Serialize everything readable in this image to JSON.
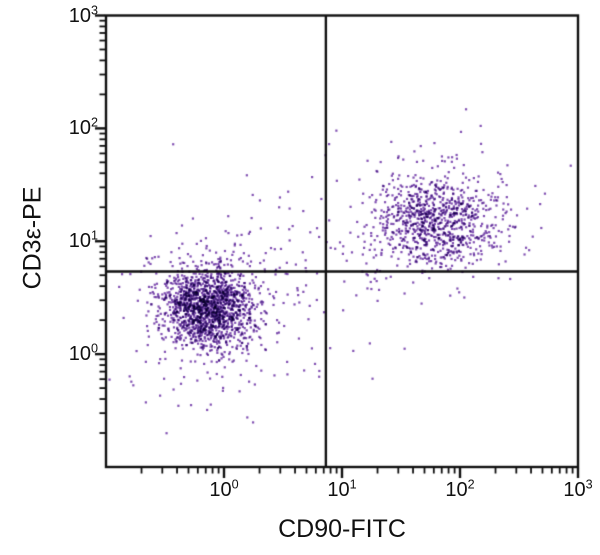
{
  "chart_data": {
    "type": "scatter",
    "subtype": "flow-cytometry-dot-plot",
    "title": "",
    "xlabel": "CD90-FITC",
    "ylabel": "CD3ε-PE",
    "x_scale": "log",
    "y_scale": "log",
    "x_range": [
      0.1,
      1000
    ],
    "y_range": [
      0.1,
      1000
    ],
    "x_tick_exponents": [
      0,
      1,
      2,
      3
    ],
    "y_tick_exponents": [
      0,
      1,
      2,
      3
    ],
    "tick_base": "10",
    "grid": false,
    "legend": "none",
    "quadrant_gates": {
      "x": 7.3,
      "y": 5.4
    },
    "dot_color": "#6326a0",
    "dot_alpha": 0.8,
    "dot_size_px": 2.2,
    "axis_color": "#111111",
    "populations": [
      {
        "name": "double-negative CD90-/CD3e-",
        "n": 1500,
        "center_log10": [
          -0.13,
          0.4
        ],
        "sigma_log10": [
          0.2,
          0.17
        ]
      },
      {
        "name": "double-negative halo/tail",
        "n": 240,
        "center_log10": [
          -0.12,
          0.36
        ],
        "sigma_log10": [
          0.42,
          0.4
        ]
      },
      {
        "name": "double-positive CD90+/CD3e+",
        "n": 850,
        "center_log10": [
          1.8,
          1.19
        ],
        "sigma_log10": [
          0.27,
          0.2
        ]
      },
      {
        "name": "double-positive halo",
        "n": 150,
        "center_log10": [
          1.77,
          1.17
        ],
        "sigma_log10": [
          0.5,
          0.38
        ]
      },
      {
        "name": "background bridge scatter",
        "n": 95,
        "center_log10": [
          0.6,
          0.75
        ],
        "sigma_log10": [
          0.55,
          0.45
        ]
      }
    ],
    "seed": 1337
  }
}
